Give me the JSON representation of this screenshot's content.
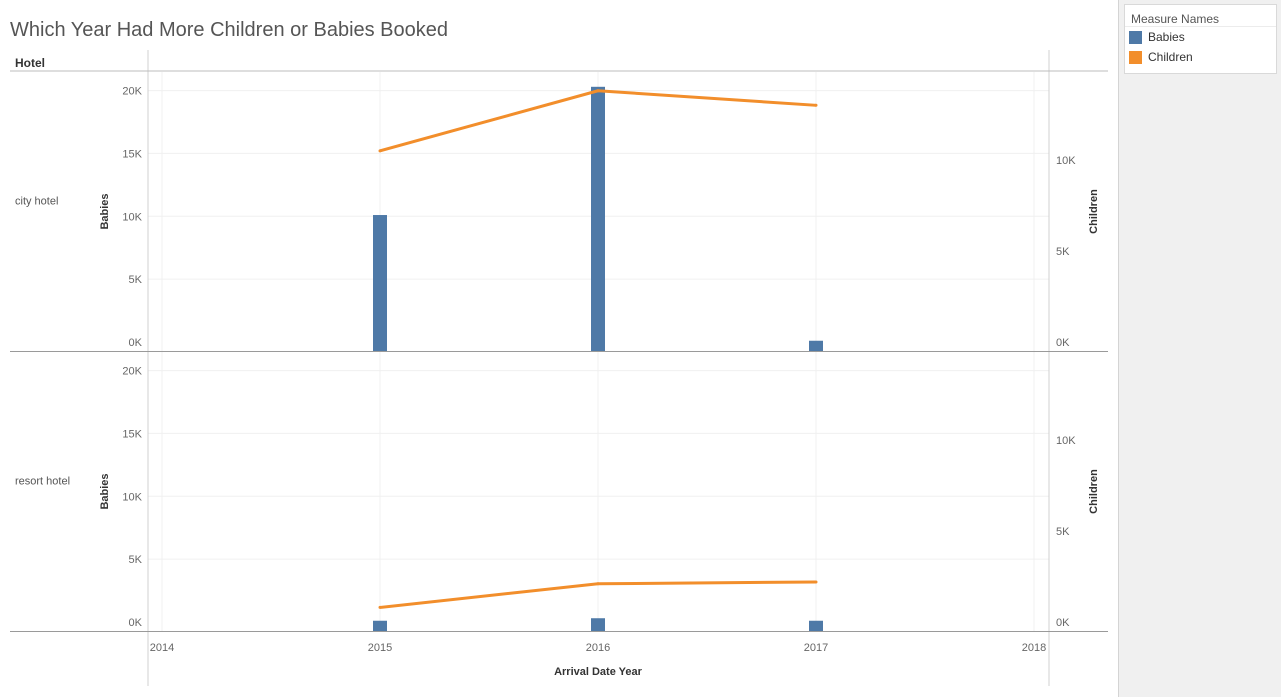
{
  "title": "Which Year Had More Children or Babies Booked",
  "row_header": "Hotel",
  "legend": {
    "title": "Measure Names",
    "items": [
      {
        "label": "Babies",
        "color": "#4e79a7"
      },
      {
        "label": "Children",
        "color": "#f28e2b"
      }
    ]
  },
  "chart_data": {
    "type": "bar",
    "x": [
      2015,
      2016,
      2017
    ],
    "xlabel": "Arrival Date Year",
    "xlim": [
      2014,
      2018
    ],
    "x_ticks": [
      "2014",
      "2015",
      "2016",
      "2017",
      "2018"
    ],
    "left_axis": {
      "label": "Babies",
      "ylim": [
        0,
        21000
      ],
      "ticks": [
        "0K",
        "5K",
        "10K",
        "15K",
        "20K"
      ]
    },
    "right_axis": {
      "label": "Children",
      "ylim": [
        0,
        14500
      ],
      "ticks": [
        "0K",
        "5K",
        "10K"
      ]
    },
    "panes": [
      {
        "row": "city hotel",
        "series": [
          {
            "name": "Babies",
            "type": "bar",
            "axis": "left",
            "values": [
              10100,
              20300,
              100
            ]
          },
          {
            "name": "Children",
            "type": "line",
            "axis": "right",
            "values": [
              10500,
              13800,
              13000
            ]
          }
        ]
      },
      {
        "row": "resort hotel",
        "series": [
          {
            "name": "Babies",
            "type": "bar",
            "axis": "left",
            "values": [
              100,
              300,
              100
            ]
          },
          {
            "name": "Children",
            "type": "line",
            "axis": "right",
            "values": [
              800,
              2100,
              2200
            ]
          }
        ]
      }
    ]
  }
}
